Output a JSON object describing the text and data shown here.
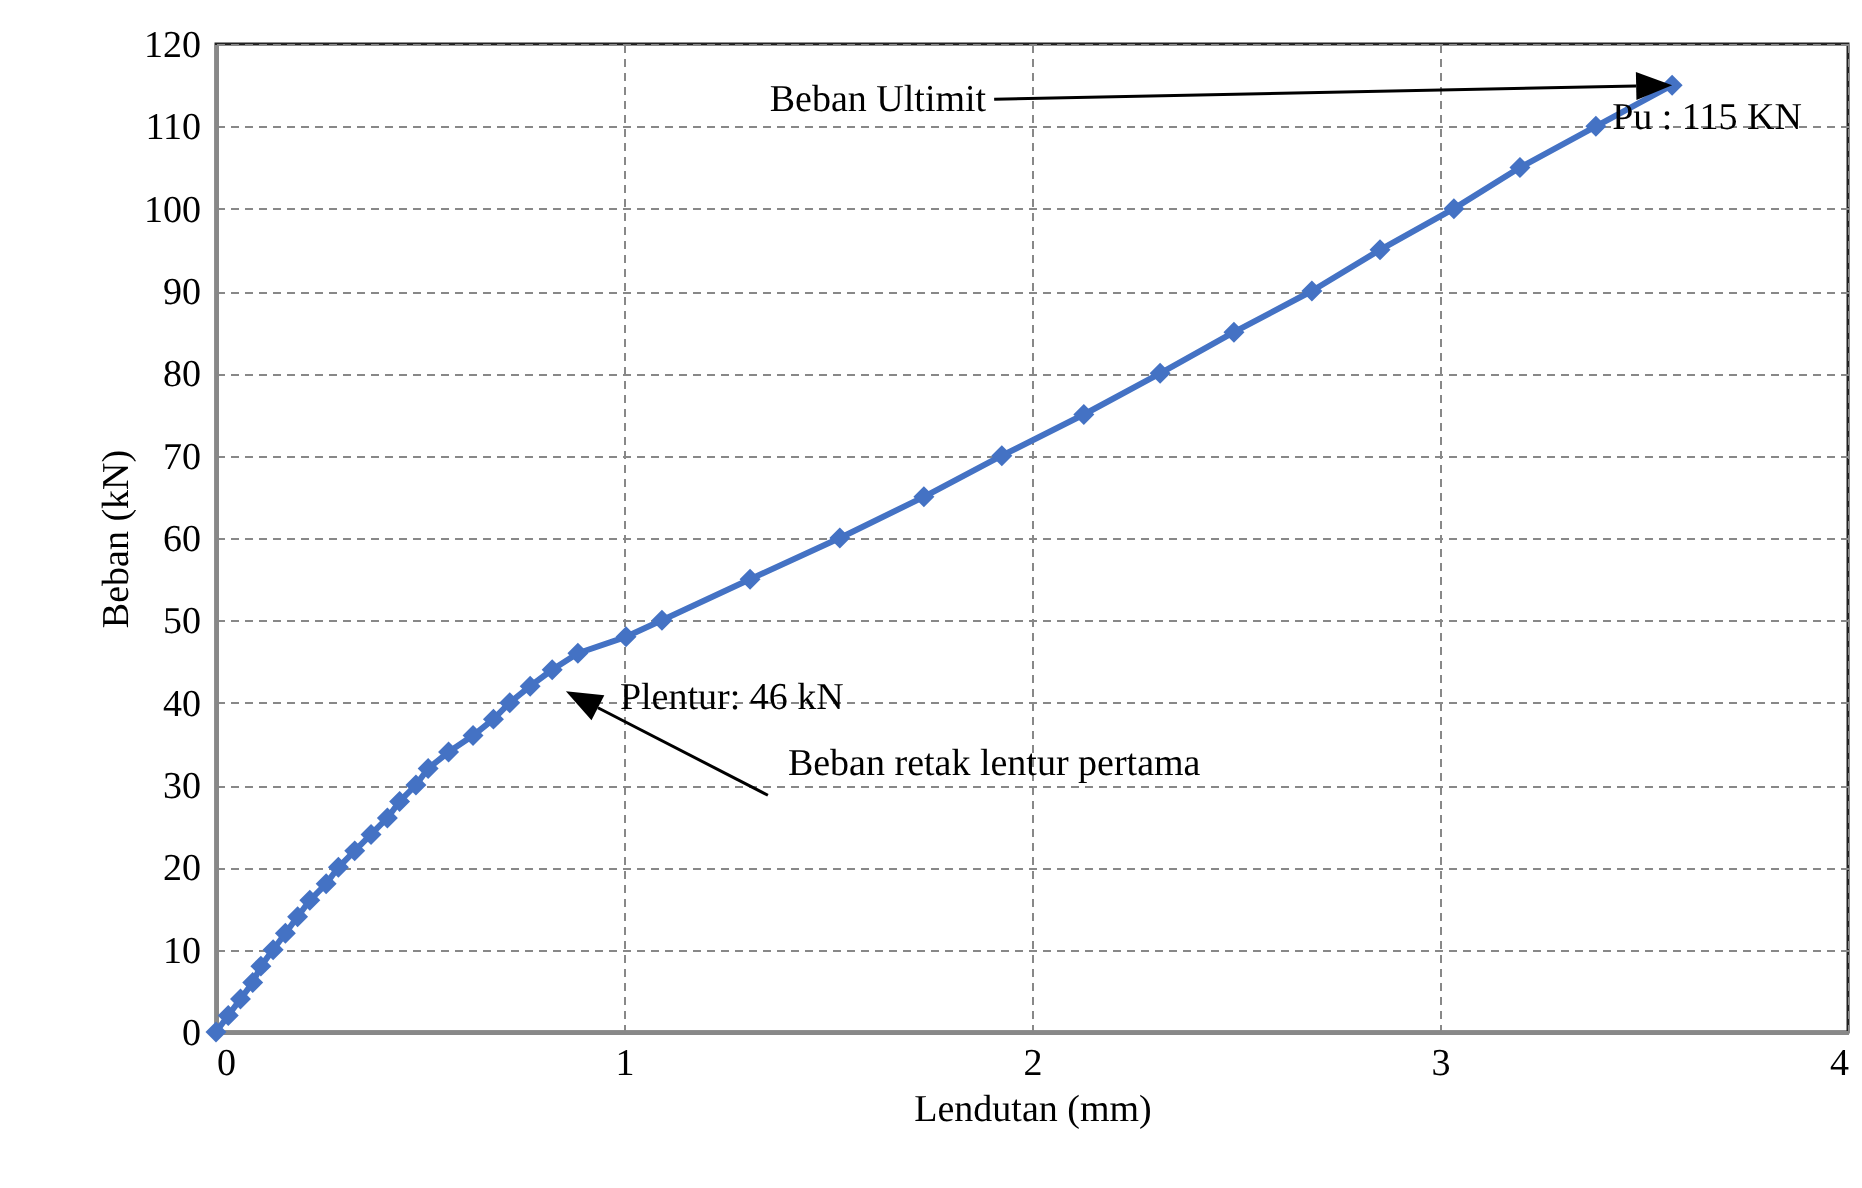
{
  "chart_data": {
    "type": "line",
    "xlabel": "Lendutan (mm)",
    "ylabel": "Beban (kN)",
    "x": [
      0,
      0.03,
      0.06,
      0.09,
      0.11,
      0.14,
      0.17,
      0.2,
      0.23,
      0.27,
      0.3,
      0.34,
      0.38,
      0.42,
      0.45,
      0.49,
      0.52,
      0.57,
      0.63,
      0.68,
      0.72,
      0.77,
      0.824,
      0.887,
      1.005,
      1.093,
      1.309,
      1.529,
      1.735,
      1.926,
      2.127,
      2.314,
      2.495,
      2.686,
      2.853,
      3.034,
      3.196,
      3.382,
      3.569
    ],
    "series": [
      {
        "color": "#4472c4",
        "values": [
          0,
          2,
          4,
          6,
          8,
          10,
          12,
          14,
          16,
          18,
          20,
          22,
          24,
          26,
          28,
          30,
          32,
          34,
          36,
          38,
          40,
          42,
          44,
          46,
          48,
          50,
          55,
          60,
          65,
          70,
          75,
          80,
          85,
          90,
          95,
          100,
          105,
          110,
          115
        ]
      }
    ],
    "xlim": [
      0,
      4
    ],
    "xticks": [
      0,
      1,
      2,
      3,
      4
    ],
    "ylim": [
      0,
      120
    ],
    "yticks": [
      0,
      10,
      20,
      30,
      40,
      50,
      60,
      70,
      80,
      90,
      100,
      110,
      120
    ],
    "grid": true,
    "marker": "diamond",
    "line_style": "solid",
    "annotations": [
      "Beban Ultimit",
      {
        "text": "Pu : 115 KN",
        "x": 3.569,
        "y": 115
      },
      {
        "text": "Plentur: 46 kN",
        "x": 0.887,
        "y": 46
      },
      "Beban retak lentur pertama"
    ]
  }
}
